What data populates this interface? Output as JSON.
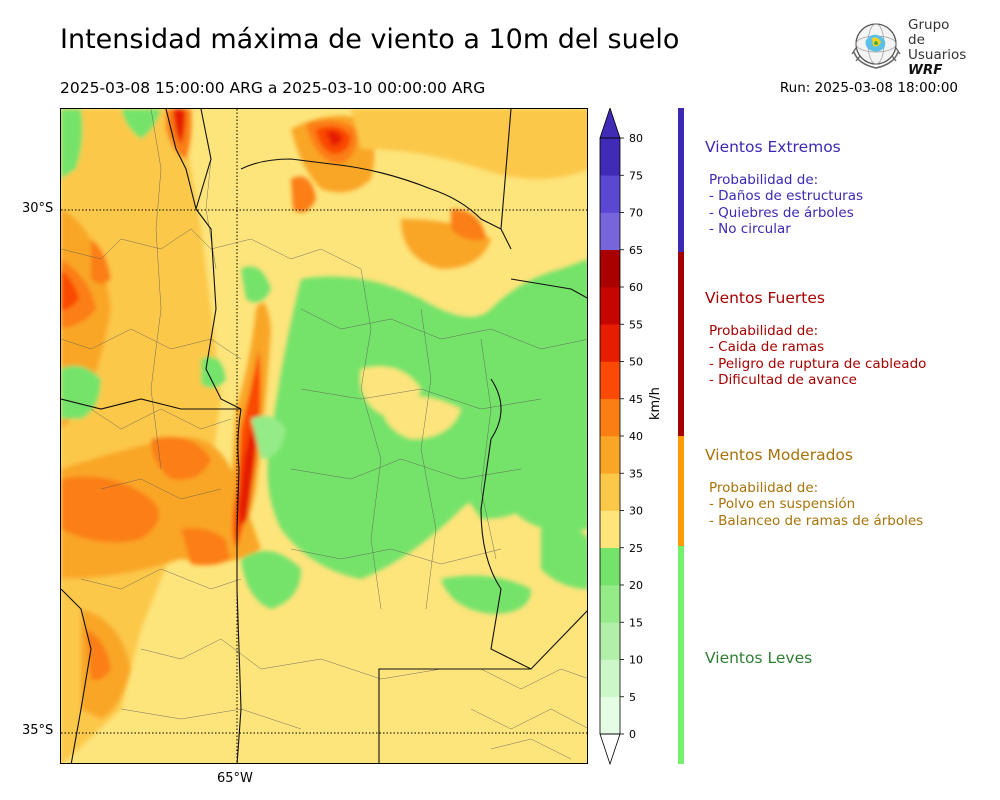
{
  "header": {
    "title": "Intensidad máxima de viento a 10m del suelo",
    "period": "2025-03-08 15:00:00 ARG  a  2025-03-10 00:00:00 ARG",
    "run": "Run: 2025-03-08 18:00:00"
  },
  "logo": {
    "line1": "Grupo de",
    "line2": "Usuarios",
    "line3": "WRF"
  },
  "map": {
    "lat_labels": [
      "30°S",
      "35°S"
    ],
    "lon_labels": [
      "65°W"
    ]
  },
  "colorbar": {
    "unit": "km/h",
    "ticks": [
      "80",
      "75",
      "70",
      "65",
      "60",
      "55",
      "50",
      "45",
      "40",
      "35",
      "30",
      "25",
      "20",
      "15",
      "10",
      "5",
      "0"
    ],
    "levels": [
      0,
      5,
      10,
      15,
      20,
      25,
      30,
      35,
      40,
      45,
      50,
      55,
      60,
      65,
      70,
      75,
      80
    ],
    "colors": [
      "#e5fce5",
      "#ccf7c9",
      "#b2f0aa",
      "#94eb88",
      "#74e36a",
      "#fde47b",
      "#fcc84a",
      "#f9a626",
      "#fb7e12",
      "#fa4a05",
      "#e61d00",
      "#c50500",
      "#a90000",
      "#7765dc",
      "#5a47d2",
      "#3f2bb5"
    ]
  },
  "categories": [
    {
      "title": "Vientos Extremos",
      "color": "#3b28b3",
      "text_color": "#3b28b3",
      "lines": [
        "Probabilidad de:",
        "- Daños de estructuras",
        "- Quiebres de árboles",
        "- No circular"
      ]
    },
    {
      "title": "Vientos Fuertes",
      "color": "#a50000",
      "text_color": "#a50000",
      "lines": [
        "Probabilidad de:",
        "- Caida de ramas",
        "- Peligro de ruptura de cableado",
        "- Dificultad de avance"
      ]
    },
    {
      "title": "Vientos Moderados",
      "color": "#fb9c07",
      "text_color": "#a8720a",
      "lines": [
        "Probabilidad de:",
        "- Polvo en suspensión",
        "- Balanceo de ramas de árboles"
      ]
    },
    {
      "title": "Vientos Leves",
      "color": "#74f06d",
      "text_color": "#2e7d32",
      "lines": []
    }
  ]
}
